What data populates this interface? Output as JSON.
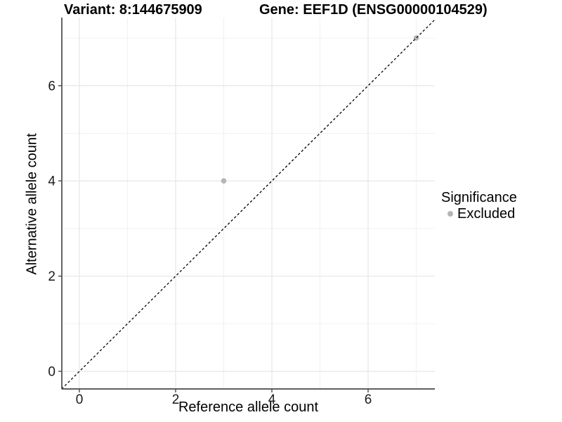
{
  "titles": {
    "variant": "Variant: 8:144675909",
    "gene": "Gene: EEF1D (ENSG00000104529)"
  },
  "axes": {
    "x": {
      "label": "Reference allele count",
      "tick_labels": [
        "0",
        "2",
        "4",
        "6"
      ],
      "tick_values": [
        0,
        2,
        4,
        6
      ]
    },
    "y": {
      "label": "Alternative allele count",
      "tick_labels": [
        "0",
        "2",
        "4",
        "6"
      ],
      "tick_values": [
        0,
        2,
        4,
        6
      ]
    }
  },
  "legend": {
    "title": "Significance",
    "items": [
      {
        "label": "Excluded",
        "color": "#b5b5b5"
      }
    ]
  },
  "chart_data": {
    "type": "scatter",
    "title": "Variant: 8:144675909   Gene: EEF1D (ENSG00000104529)",
    "xlabel": "Reference allele count",
    "ylabel": "Alternative allele count",
    "xlim": [
      -0.37,
      7.39
    ],
    "ylim": [
      -0.37,
      7.43
    ],
    "grid": {
      "major": [
        0,
        2,
        4,
        6
      ],
      "minor": [
        1,
        3,
        5,
        7
      ],
      "visible": true
    },
    "legend_position": "right",
    "series": [
      {
        "name": "Excluded",
        "color": "#b5b5b5",
        "points": [
          {
            "x": 3,
            "y": 4
          },
          {
            "x": 7,
            "y": 7
          }
        ]
      }
    ],
    "reference_line": {
      "type": "identity",
      "equation": "y = x",
      "style": "dashed",
      "color": "#000000"
    }
  },
  "colors": {
    "background": "#ffffff",
    "grid_major": "#e8e8e8",
    "grid_minor": "#f1f1f1",
    "axis_line": "#4a4a4a",
    "tick_text": "#1a1a1a",
    "point": "#b5b5b5"
  }
}
